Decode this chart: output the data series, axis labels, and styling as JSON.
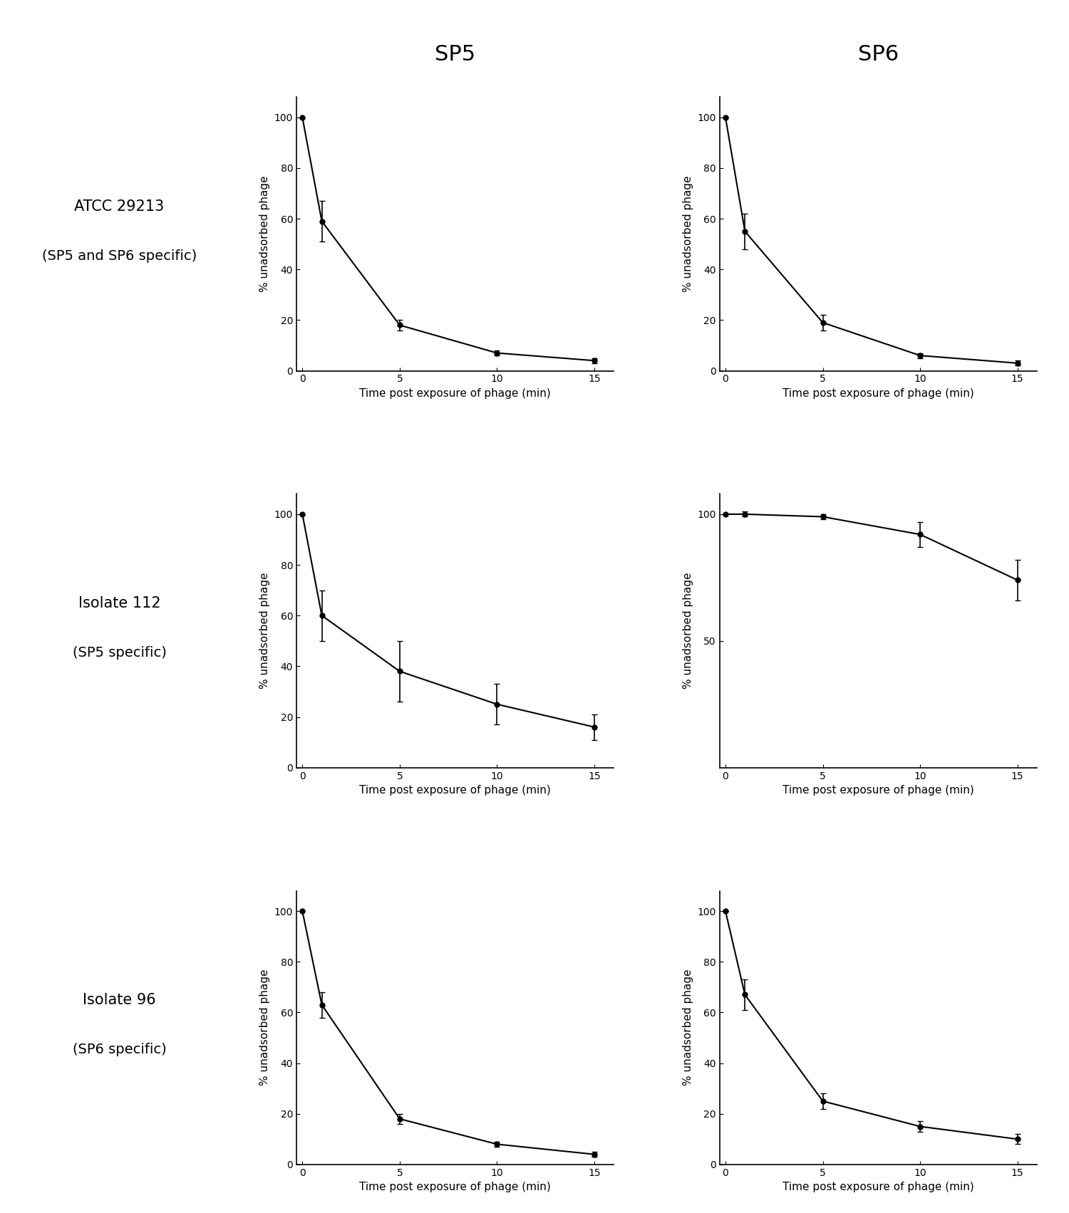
{
  "col_titles": [
    "SP5",
    "SP6"
  ],
  "row_labels": [
    [
      "ATCC 29213",
      "(SP5 and SP6 specific)"
    ],
    [
      "Isolate 112",
      "(SP5 specific)"
    ],
    [
      "Isolate 96",
      "(SP6 specific)"
    ]
  ],
  "xlabel": "Time post exposure of phage (min)",
  "ylabel": "% unadsorbed phage",
  "xticks": [
    0,
    5,
    10,
    15
  ],
  "plots": [
    {
      "row": 0,
      "col": 0,
      "x": [
        0,
        1,
        5,
        10,
        15
      ],
      "y": [
        100,
        59,
        18,
        7,
        4
      ],
      "yerr": [
        0,
        8,
        2,
        1,
        1
      ],
      "ylim": [
        0,
        108
      ],
      "yticks": [
        0,
        20,
        40,
        60,
        80,
        100
      ]
    },
    {
      "row": 0,
      "col": 1,
      "x": [
        0,
        1,
        5,
        10,
        15
      ],
      "y": [
        100,
        55,
        19,
        6,
        3
      ],
      "yerr": [
        0,
        7,
        3,
        1,
        1
      ],
      "ylim": [
        0,
        108
      ],
      "yticks": [
        0,
        20,
        40,
        60,
        80,
        100
      ]
    },
    {
      "row": 1,
      "col": 0,
      "x": [
        0,
        1,
        5,
        10,
        15
      ],
      "y": [
        100,
        60,
        38,
        25,
        16
      ],
      "yerr": [
        0,
        10,
        12,
        8,
        5
      ],
      "ylim": [
        0,
        108
      ],
      "yticks": [
        0,
        20,
        40,
        60,
        80,
        100
      ]
    },
    {
      "row": 1,
      "col": 1,
      "x": [
        0,
        1,
        5,
        10,
        15
      ],
      "y": [
        100,
        100,
        99,
        92,
        74
      ],
      "yerr": [
        0,
        1,
        1,
        5,
        8
      ],
      "ylim": [
        0,
        108
      ],
      "yticks": [
        50,
        100
      ]
    },
    {
      "row": 2,
      "col": 0,
      "x": [
        0,
        1,
        5,
        10,
        15
      ],
      "y": [
        100,
        63,
        18,
        8,
        4
      ],
      "yerr": [
        0,
        5,
        2,
        1,
        1
      ],
      "ylim": [
        0,
        108
      ],
      "yticks": [
        0,
        20,
        40,
        60,
        80,
        100
      ]
    },
    {
      "row": 2,
      "col": 1,
      "x": [
        0,
        1,
        5,
        10,
        15
      ],
      "y": [
        100,
        67,
        25,
        15,
        10
      ],
      "yerr": [
        0,
        6,
        3,
        2,
        2
      ],
      "ylim": [
        0,
        108
      ],
      "yticks": [
        0,
        20,
        40,
        60,
        80,
        100
      ]
    }
  ],
  "background_color": "#ffffff",
  "line_color": "#000000",
  "marker": "o",
  "markersize": 5,
  "linewidth": 1.5,
  "capsize": 3,
  "elinewidth": 1.2,
  "col_title_fontsize": 22,
  "label_fontsize": 11,
  "tick_fontsize": 10,
  "row_label_fontsize": 15,
  "row_label_line2_fontsize": 14
}
